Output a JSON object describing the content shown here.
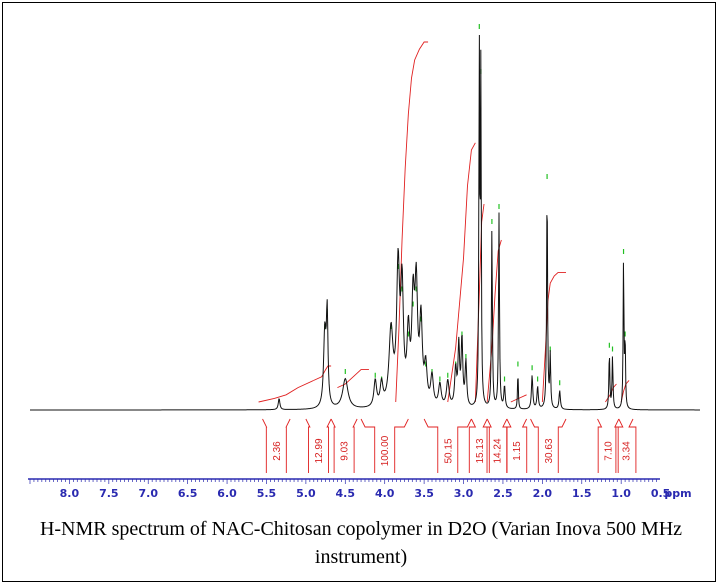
{
  "colors": {
    "spectrum": "#111111",
    "integral": "#e02020",
    "peak_marker": "#22c022",
    "axis": "#2a2ab0",
    "frame": "#000000"
  },
  "caption": "H-NMR spectrum of NAC-Chitosan copolymer in D2O (Varian Inova 500 MHz instrument)",
  "chart_data": {
    "type": "line",
    "title": "",
    "xlabel": "ppm",
    "ylabel": "",
    "xlim": [
      8.5,
      0.0
    ],
    "x_reversed": true,
    "xticks": [
      "8.0",
      "7.5",
      "7.0",
      "6.5",
      "6.0",
      "5.5",
      "5.0",
      "4.5",
      "4.0",
      "3.5",
      "3.0",
      "2.5",
      "2.0",
      "1.5",
      "1.0",
      "0.5",
      "ppm"
    ],
    "xtick_values": [
      8.0,
      7.5,
      7.0,
      6.5,
      6.0,
      5.5,
      5.0,
      4.5,
      4.0,
      3.5,
      3.0,
      2.5,
      2.0,
      1.5,
      1.0,
      0.5
    ],
    "ylim": [
      0,
      100
    ],
    "series": [
      {
        "peaks": [
          {
            "ppm": 5.34,
            "height": 3,
            "width": 0.012
          },
          {
            "ppm": 4.76,
            "height": 20,
            "width": 0.018
          },
          {
            "ppm": 4.73,
            "height": 24,
            "width": 0.012
          },
          {
            "ppm": 4.5,
            "height": 8,
            "width": 0.04
          },
          {
            "ppm": 4.12,
            "height": 7,
            "width": 0.02
          },
          {
            "ppm": 4.04,
            "height": 6,
            "width": 0.02
          },
          {
            "ppm": 3.92,
            "height": 20,
            "width": 0.03
          },
          {
            "ppm": 3.83,
            "height": 36,
            "width": 0.022
          },
          {
            "ppm": 3.78,
            "height": 30,
            "width": 0.02
          },
          {
            "ppm": 3.7,
            "height": 18,
            "width": 0.02
          },
          {
            "ppm": 3.64,
            "height": 26,
            "width": 0.02
          },
          {
            "ppm": 3.6,
            "height": 30,
            "width": 0.02
          },
          {
            "ppm": 3.54,
            "height": 22,
            "width": 0.02
          },
          {
            "ppm": 3.48,
            "height": 10,
            "width": 0.02
          },
          {
            "ppm": 3.4,
            "height": 8,
            "width": 0.02
          },
          {
            "ppm": 3.3,
            "height": 6,
            "width": 0.02
          },
          {
            "ppm": 3.2,
            "height": 7,
            "width": 0.02
          },
          {
            "ppm": 3.1,
            "height": 10,
            "width": 0.015
          },
          {
            "ppm": 3.06,
            "height": 16,
            "width": 0.012
          },
          {
            "ppm": 3.02,
            "height": 18,
            "width": 0.012
          },
          {
            "ppm": 2.97,
            "height": 12,
            "width": 0.012
          },
          {
            "ppm": 2.8,
            "height": 100,
            "width": 0.006
          },
          {
            "ppm": 2.78,
            "height": 88,
            "width": 0.006
          },
          {
            "ppm": 2.64,
            "height": 48,
            "width": 0.007
          },
          {
            "ppm": 2.55,
            "height": 52,
            "width": 0.007
          },
          {
            "ppm": 2.48,
            "height": 6,
            "width": 0.01
          },
          {
            "ppm": 2.31,
            "height": 10,
            "width": 0.006
          },
          {
            "ppm": 2.13,
            "height": 9,
            "width": 0.01
          },
          {
            "ppm": 2.06,
            "height": 6,
            "width": 0.01
          },
          {
            "ppm": 1.94,
            "height": 60,
            "width": 0.007
          },
          {
            "ppm": 1.9,
            "height": 14,
            "width": 0.007
          },
          {
            "ppm": 1.78,
            "height": 5,
            "width": 0.01
          },
          {
            "ppm": 1.15,
            "height": 15,
            "width": 0.007
          },
          {
            "ppm": 1.11,
            "height": 14,
            "width": 0.007
          },
          {
            "ppm": 0.97,
            "height": 40,
            "width": 0.006
          },
          {
            "ppm": 0.95,
            "height": 18,
            "width": 0.006
          }
        ]
      }
    ],
    "integrals": [
      {
        "from": 5.55,
        "to": 5.2,
        "value": "2.36"
      },
      {
        "from": 5.0,
        "to": 4.68,
        "value": "12.99"
      },
      {
        "from": 4.68,
        "to": 4.35,
        "value": "9.03"
      },
      {
        "from": 4.3,
        "to": 3.7,
        "value": "100.00"
      },
      {
        "from": 3.5,
        "to": 2.9,
        "value": "50.15"
      },
      {
        "from": 2.9,
        "to": 2.7,
        "value": "15.13"
      },
      {
        "from": 2.7,
        "to": 2.45,
        "value": "14.24"
      },
      {
        "from": 2.45,
        "to": 2.2,
        "value": "1.15"
      },
      {
        "from": 2.15,
        "to": 1.7,
        "value": "30.63"
      },
      {
        "from": 1.3,
        "to": 1.03,
        "value": "7.10"
      },
      {
        "from": 1.03,
        "to": 0.85,
        "value": "3.34"
      }
    ],
    "integral_curves": [
      {
        "x": [
          5.6,
          5.4,
          5.25,
          5.1,
          4.9
        ],
        "y": [
          0.0,
          0.01,
          0.02,
          0.04,
          0.06
        ]
      },
      {
        "x": [
          4.9,
          4.8,
          4.75,
          4.72,
          4.68
        ],
        "y": [
          0.06,
          0.07,
          0.09,
          0.1,
          0.1
        ]
      },
      {
        "x": [
          4.6,
          4.5,
          4.4,
          4.3,
          4.2
        ],
        "y": [
          0.04,
          0.05,
          0.07,
          0.09,
          0.09
        ]
      },
      {
        "x": [
          3.86,
          3.82,
          3.78,
          3.74,
          3.7,
          3.66,
          3.62,
          3.56,
          3.5,
          3.45
        ],
        "y": [
          0.0,
          0.2,
          0.45,
          0.65,
          0.8,
          0.9,
          0.95,
          0.98,
          1.0,
          1.0
        ]
      },
      {
        "x": [
          3.2,
          3.1,
          3.0,
          2.95,
          2.9,
          2.85
        ],
        "y": [
          0.0,
          0.15,
          0.4,
          0.6,
          0.7,
          0.72
        ]
      },
      {
        "x": [
          2.85,
          2.8,
          2.77,
          2.74
        ],
        "y": [
          0.0,
          0.3,
          0.5,
          0.55
        ]
      },
      {
        "x": [
          2.7,
          2.64,
          2.6,
          2.56,
          2.52
        ],
        "y": [
          0.0,
          0.15,
          0.3,
          0.42,
          0.45
        ]
      },
      {
        "x": [
          2.4,
          2.3,
          2.2
        ],
        "y": [
          0.0,
          0.01,
          0.02
        ]
      },
      {
        "x": [
          2.0,
          1.96,
          1.93,
          1.9,
          1.85,
          1.8,
          1.7
        ],
        "y": [
          0.0,
          0.15,
          0.28,
          0.33,
          0.35,
          0.36,
          0.36
        ]
      },
      {
        "x": [
          1.2,
          1.14,
          1.1,
          1.06
        ],
        "y": [
          0.0,
          0.02,
          0.04,
          0.05
        ]
      },
      {
        "x": [
          1.0,
          0.97,
          0.94,
          0.9
        ],
        "y": [
          0.0,
          0.03,
          0.05,
          0.06
        ]
      }
    ],
    "grid": false,
    "legend": "none"
  }
}
